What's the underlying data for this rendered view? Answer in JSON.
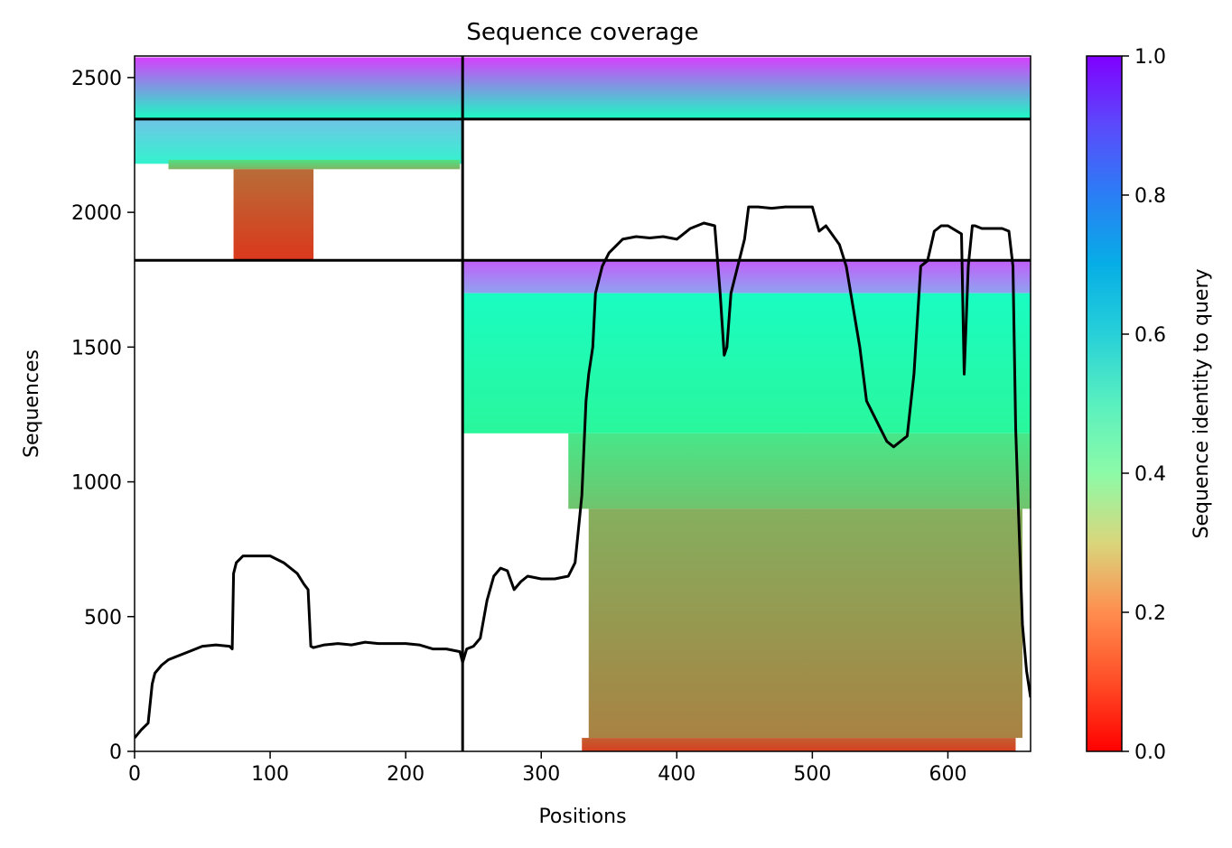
{
  "chart_data": {
    "type": "heatmap",
    "title": "Sequence coverage",
    "xlabel": "Positions",
    "ylabel": "Sequences",
    "xlim": [
      0,
      661
    ],
    "ylim": [
      0,
      2580
    ],
    "x_ticks": [
      0,
      100,
      200,
      300,
      400,
      500,
      600
    ],
    "y_ticks": [
      0,
      500,
      1000,
      1500,
      2000,
      2500
    ],
    "colorbar": {
      "label": "Sequence identity to query",
      "range": [
        0,
        1
      ],
      "ticks": [
        "0.0",
        "0.2",
        "0.4",
        "0.6",
        "0.8",
        "1.0"
      ],
      "colormap": "rainbow"
    },
    "block_boundaries": {
      "x": [
        242
      ],
      "y": [
        1822,
        2346
      ]
    },
    "blocks": [
      {
        "x_range": [
          0,
          242
        ],
        "y_range": [
          2346,
          2575
        ],
        "identity_bottom": 0.55,
        "identity_top": 0.92
      },
      {
        "x_range": [
          242,
          661
        ],
        "y_range": [
          2346,
          2575
        ],
        "identity_bottom": 0.55,
        "identity_top": 0.92
      },
      {
        "x_range": [
          0,
          242
        ],
        "y_range": [
          2180,
          2346
        ],
        "identity_bottom": 0.6,
        "identity_top": 0.72
      },
      {
        "x_range": [
          25,
          240
        ],
        "y_range": [
          2160,
          2195
        ],
        "identity_bottom": 0.25,
        "identity_top": 0.35
      },
      {
        "x_range": [
          73,
          132
        ],
        "y_range": [
          1822,
          2160
        ],
        "identity_bottom": 0.07,
        "identity_top": 0.14
      },
      {
        "x_range": [
          242,
          661
        ],
        "y_range": [
          1700,
          1822
        ],
        "identity_bottom": 0.78,
        "identity_top": 0.88
      },
      {
        "x_range": [
          242,
          661
        ],
        "y_range": [
          1180,
          1700
        ],
        "identity_bottom": 0.42,
        "identity_top": 0.55
      },
      {
        "x_range": [
          320,
          661
        ],
        "y_range": [
          900,
          1180
        ],
        "identity_bottom": 0.28,
        "identity_top": 0.36
      },
      {
        "x_range": [
          335,
          655
        ],
        "y_range": [
          50,
          900
        ],
        "identity_bottom": 0.17,
        "identity_top": 0.24
      },
      {
        "x_range": [
          330,
          650
        ],
        "y_range": [
          0,
          50
        ],
        "identity_bottom": 0.08,
        "identity_top": 0.12
      }
    ],
    "coverage_line": {
      "color": "#000000",
      "x": [
        0,
        5,
        10,
        13,
        15,
        20,
        25,
        30,
        40,
        50,
        60,
        70,
        72,
        73,
        75,
        80,
        90,
        100,
        110,
        120,
        125,
        128,
        130,
        132,
        140,
        150,
        160,
        170,
        180,
        190,
        200,
        210,
        220,
        230,
        240,
        242,
        245,
        250,
        255,
        260,
        265,
        270,
        275,
        280,
        285,
        290,
        300,
        310,
        320,
        325,
        330,
        333,
        335,
        338,
        340,
        345,
        350,
        360,
        370,
        380,
        390,
        400,
        410,
        420,
        428,
        432,
        435,
        437,
        440,
        445,
        450,
        453,
        460,
        470,
        480,
        490,
        500,
        505,
        510,
        520,
        525,
        530,
        535,
        540,
        545,
        550,
        555,
        560,
        565,
        570,
        575,
        580,
        585,
        590,
        595,
        600,
        610,
        612,
        615,
        618,
        620,
        625,
        630,
        635,
        640,
        645,
        648,
        650,
        652,
        655,
        658,
        661
      ],
      "y": [
        50,
        80,
        105,
        250,
        290,
        320,
        340,
        350,
        370,
        390,
        395,
        390,
        380,
        660,
        700,
        725,
        725,
        725,
        700,
        660,
        620,
        600,
        390,
        385,
        395,
        400,
        395,
        405,
        400,
        400,
        400,
        395,
        380,
        380,
        370,
        330,
        380,
        390,
        420,
        560,
        650,
        680,
        670,
        600,
        630,
        650,
        640,
        640,
        650,
        700,
        950,
        1300,
        1400,
        1500,
        1700,
        1800,
        1850,
        1900,
        1910,
        1905,
        1910,
        1900,
        1940,
        1960,
        1950,
        1700,
        1470,
        1500,
        1700,
        1800,
        1900,
        2020,
        2020,
        2015,
        2020,
        2020,
        2020,
        1930,
        1950,
        1880,
        1800,
        1650,
        1500,
        1300,
        1250,
        1200,
        1150,
        1130,
        1150,
        1170,
        1400,
        1800,
        1820,
        1930,
        1950,
        1950,
        1920,
        1400,
        1800,
        1950,
        1950,
        1940,
        1940,
        1940,
        1940,
        1930,
        1800,
        1200,
        900,
        470,
        300,
        200
      ]
    }
  }
}
